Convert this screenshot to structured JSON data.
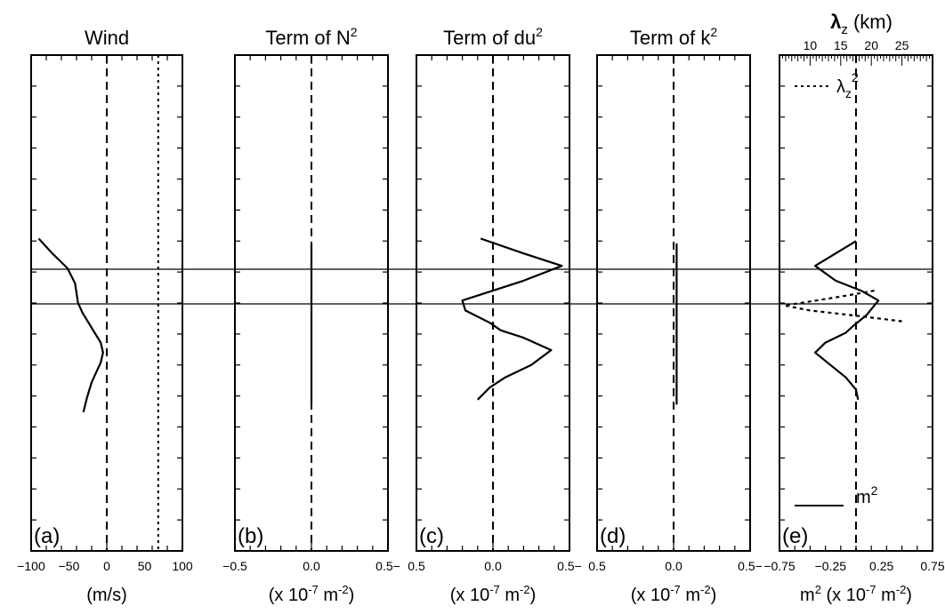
{
  "chart_data": [
    {
      "id": "a",
      "type": "line",
      "panel_label": "(a)",
      "title": "Wind",
      "xlabel": "(m/s)",
      "xlim": [
        -100,
        100
      ],
      "xticks": [
        -100,
        -50,
        0,
        50,
        100
      ],
      "xtick_labels": [
        "−100",
        "−50",
        "0",
        "50",
        "100"
      ],
      "ylim": [
        0,
        1
      ],
      "series": [
        {
          "style": "solid",
          "points": [
            [
              -90,
              0.63
            ],
            [
              -72,
              0.6
            ],
            [
              -52,
              0.57
            ],
            [
              -42,
              0.54
            ],
            [
              -40,
              0.52
            ],
            [
              -38,
              0.5
            ],
            [
              -32,
              0.48
            ],
            [
              -24,
              0.46
            ],
            [
              -16,
              0.44
            ],
            [
              -8,
              0.42
            ],
            [
              -5,
              0.4
            ],
            [
              -8,
              0.38
            ],
            [
              -14,
              0.36
            ],
            [
              -20,
              0.34
            ],
            [
              -26,
              0.31
            ],
            [
              -31,
              0.28
            ]
          ]
        }
      ],
      "ref_lines": [
        {
          "x": 0,
          "style": "dashed"
        },
        {
          "x": 68,
          "style": "dotted"
        }
      ]
    },
    {
      "id": "b",
      "type": "line",
      "panel_label": "(b)",
      "title": "Term of N",
      "title_sup": "2",
      "xlabel": "(x 10",
      "xlabel_sup1": "-7",
      "xlabel_mid": " m",
      "xlabel_sup2": "-2",
      "xlabel_end": ")",
      "xlim": [
        -0.5,
        0.5
      ],
      "xticks": [
        -0.5,
        0.0,
        0.5
      ],
      "xtick_labels": [
        "−0.5",
        "0.0",
        "0.5−"
      ],
      "ylim": [
        0,
        1
      ],
      "series": [
        {
          "style": "solid",
          "points": [
            [
              0.0,
              0.62
            ],
            [
              0.0,
              0.295
            ]
          ]
        }
      ],
      "ref_lines": [
        {
          "x": 0,
          "style": "dashed"
        }
      ]
    },
    {
      "id": "c",
      "type": "line",
      "panel_label": "(c)",
      "title": "Term of du",
      "title_sup": "2",
      "xlabel": "(x 10",
      "xlabel_sup1": "-7",
      "xlabel_mid": " m",
      "xlabel_sup2": "-2",
      "xlabel_end": ")",
      "xlim": [
        -0.5,
        0.5
      ],
      "xticks": [
        -0.5,
        0.0,
        0.5
      ],
      "xtick_labels": [
        "0.5",
        "0.0",
        "0.5−"
      ],
      "ylim": [
        0,
        1
      ],
      "series": [
        {
          "style": "solid",
          "points": [
            [
              -0.08,
              0.63
            ],
            [
              0.2,
              0.6
            ],
            [
              0.45,
              0.575
            ],
            [
              0.2,
              0.545
            ],
            [
              -0.05,
              0.52
            ],
            [
              -0.2,
              0.505
            ],
            [
              -0.18,
              0.485
            ],
            [
              -0.02,
              0.46
            ],
            [
              0.05,
              0.445
            ],
            [
              0.2,
              0.43
            ],
            [
              0.38,
              0.405
            ],
            [
              0.25,
              0.375
            ],
            [
              0.08,
              0.35
            ],
            [
              -0.02,
              0.33
            ],
            [
              -0.1,
              0.305
            ]
          ]
        }
      ],
      "ref_lines": [
        {
          "x": 0,
          "style": "dashed"
        }
      ]
    },
    {
      "id": "d",
      "type": "line",
      "panel_label": "(d)",
      "title": "Term of k",
      "title_sup": "2",
      "xlabel": "(x 10",
      "xlabel_sup1": "-7",
      "xlabel_mid": " m",
      "xlabel_sup2": "-2",
      "xlabel_end": ")",
      "xlim": [
        -0.5,
        0.5
      ],
      "xticks": [
        -0.5,
        0.0,
        0.5
      ],
      "xtick_labels": [
        "0.5",
        "0.0",
        "0.5−"
      ],
      "ylim": [
        0,
        1
      ],
      "series": [
        {
          "style": "solid",
          "points": [
            [
              0.02,
              0.62
            ],
            [
              0.02,
              0.295
            ]
          ]
        }
      ],
      "ref_lines": [
        {
          "x": 0,
          "style": "dashed"
        }
      ]
    },
    {
      "id": "e",
      "type": "line",
      "panel_label": "(e)",
      "title_main": "λ",
      "title_sub": "z",
      "title_rest": " (km)",
      "xlabel_pre": "m",
      "xlabel_pre_sup": "2",
      "xlabel": " (x 10",
      "xlabel_sup1": "-7",
      "xlabel_mid": " m",
      "xlabel_sup2": "-2",
      "xlabel_end": ")",
      "xlim": [
        -0.75,
        0.75
      ],
      "xticks": [
        -0.75,
        -0.25,
        0.25,
        0.75
      ],
      "xtick_labels": [
        "−0.75",
        "−0.25",
        "0.25",
        "0.75"
      ],
      "top_axis": {
        "xlim": [
          5,
          30
        ],
        "ticks": [
          10,
          15,
          20,
          25
        ],
        "tick_labels": [
          "10",
          "15",
          "20",
          "25"
        ]
      },
      "ylim": [
        0,
        1
      ],
      "legend": {
        "solid": "m",
        "solid_sup": "2",
        "dotted_main": "λ",
        "dotted_sub": "z",
        "dotted_sup": "2"
      },
      "series": [
        {
          "name": "m2",
          "style": "solid",
          "points": [
            [
              0.0,
              0.625
            ],
            [
              -0.2,
              0.6
            ],
            [
              -0.4,
              0.575
            ],
            [
              -0.2,
              0.545
            ],
            [
              0.05,
              0.525
            ],
            [
              0.22,
              0.505
            ],
            [
              0.1,
              0.475
            ],
            [
              -0.02,
              0.455
            ],
            [
              -0.1,
              0.44
            ],
            [
              -0.3,
              0.42
            ],
            [
              -0.4,
              0.4
            ],
            [
              -0.25,
              0.375
            ],
            [
              -0.1,
              0.35
            ],
            [
              0.0,
              0.325
            ],
            [
              0.02,
              0.305
            ]
          ]
        },
        {
          "name": "lz2",
          "style": "dotted",
          "axis": "top",
          "points": [
            [
              20.5,
              0.525
            ],
            [
              16,
              0.515
            ],
            [
              11,
              0.505
            ],
            [
              5.8,
              0.495
            ],
            [
              10,
              0.485
            ],
            [
              17,
              0.475
            ],
            [
              25,
              0.463
            ]
          ]
        }
      ],
      "ref_lines": [
        {
          "x": 0,
          "style": "dashed"
        }
      ]
    }
  ]
}
